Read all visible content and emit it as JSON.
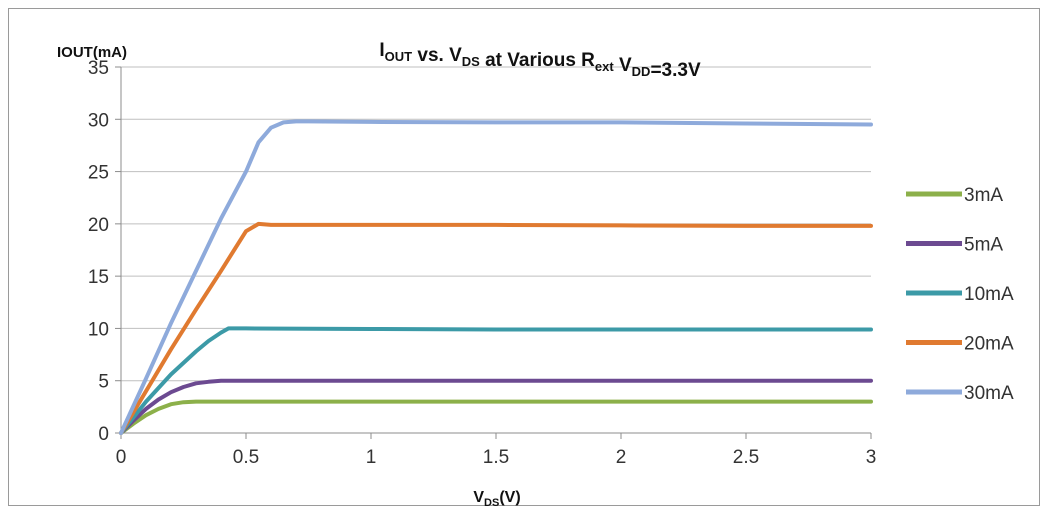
{
  "chart_data": {
    "type": "line",
    "title": {
      "parts": [
        {
          "text": "I",
          "sub": "OUT"
        },
        {
          "text": " vs. V",
          "sub": "DS"
        },
        {
          "text": " at Various R",
          "sub": "ext"
        },
        {
          "text": " V",
          "sub": "DD"
        },
        {
          "text": "=3.3V",
          "sub": ""
        }
      ]
    },
    "ylabel": "IOUT(mA)",
    "xlabel": {
      "main": "V",
      "sub": "DS",
      "suffix": "(V)"
    },
    "xlim": [
      0,
      3
    ],
    "ylim": [
      0,
      35
    ],
    "xticks": [
      {
        "value": 0,
        "label": "0"
      },
      {
        "value": 0.5,
        "label": "0.5"
      },
      {
        "value": 1,
        "label": "1"
      },
      {
        "value": 1.5,
        "label": "1.5"
      },
      {
        "value": 2,
        "label": "2"
      },
      {
        "value": 2.5,
        "label": "2.5"
      },
      {
        "value": 3,
        "label": "3"
      }
    ],
    "yticks": [
      {
        "value": 0,
        "label": "0"
      },
      {
        "value": 5,
        "label": "5"
      },
      {
        "value": 10,
        "label": "10"
      },
      {
        "value": 15,
        "label": "15"
      },
      {
        "value": 20,
        "label": "20"
      },
      {
        "value": 25,
        "label": "25"
      },
      {
        "value": 30,
        "label": "30"
      },
      {
        "value": 35,
        "label": "35"
      }
    ],
    "grid": "horizontal",
    "legend_position": "right",
    "series": [
      {
        "name": "3mA",
        "color": "#8cb04a",
        "x": [
          0,
          0.05,
          0.1,
          0.15,
          0.2,
          0.25,
          0.3,
          0.5,
          1,
          1.5,
          2,
          2.5,
          3
        ],
        "y": [
          0,
          0.9,
          1.7,
          2.3,
          2.75,
          2.95,
          3.0,
          3.0,
          3.0,
          3.0,
          3.0,
          3.0,
          3.0
        ]
      },
      {
        "name": "5mA",
        "color": "#6c4a91",
        "x": [
          0,
          0.05,
          0.1,
          0.15,
          0.2,
          0.25,
          0.3,
          0.35,
          0.4,
          0.5,
          1,
          1.5,
          2,
          2.5,
          3
        ],
        "y": [
          0,
          1.2,
          2.3,
          3.2,
          3.9,
          4.4,
          4.75,
          4.9,
          5.0,
          5.0,
          5.0,
          5.0,
          5.0,
          5.0,
          5.0
        ]
      },
      {
        "name": "10mA",
        "color": "#3c9aa7",
        "x": [
          0,
          0.05,
          0.1,
          0.15,
          0.2,
          0.25,
          0.3,
          0.35,
          0.4,
          0.43,
          0.5,
          1,
          1.5,
          2,
          2.5,
          3
        ],
        "y": [
          0,
          1.5,
          3.0,
          4.3,
          5.6,
          6.7,
          7.8,
          8.8,
          9.6,
          10.0,
          10.0,
          9.95,
          9.9,
          9.9,
          9.9,
          9.9
        ]
      },
      {
        "name": "20mA",
        "color": "#e07a30",
        "x": [
          0,
          0.1,
          0.2,
          0.3,
          0.4,
          0.5,
          0.55,
          0.6,
          1,
          1.5,
          2,
          2.5,
          3
        ],
        "y": [
          0,
          4.0,
          8.0,
          11.8,
          15.5,
          19.3,
          20.0,
          19.9,
          19.9,
          19.9,
          19.85,
          19.8,
          19.8
        ]
      },
      {
        "name": "30mA",
        "color": "#8eaadb",
        "x": [
          0,
          0.1,
          0.2,
          0.3,
          0.4,
          0.5,
          0.55,
          0.6,
          0.65,
          0.7,
          0.75,
          1,
          1.5,
          2,
          2.5,
          3
        ],
        "y": [
          0,
          5.2,
          10.5,
          15.5,
          20.5,
          25.0,
          27.8,
          29.2,
          29.7,
          29.8,
          29.8,
          29.75,
          29.7,
          29.7,
          29.6,
          29.5
        ]
      }
    ]
  }
}
